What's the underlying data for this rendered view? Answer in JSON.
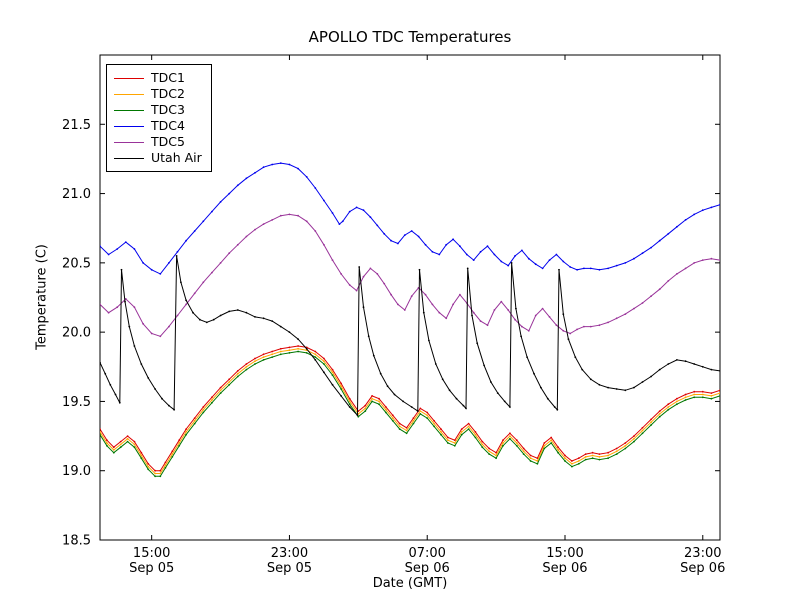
{
  "figure": {
    "background": "#ffffff",
    "frame_color": "#000000"
  },
  "chart_data": {
    "type": "line",
    "title": "APOLLO TDC Temperatures",
    "xlabel": "Date (GMT)",
    "ylabel": "Temperature (C)",
    "x_unit": "hours since Sep 05 12:00 GMT",
    "xlim": [
      0,
      36
    ],
    "ylim": [
      18.5,
      22.0
    ],
    "grid": false,
    "legend_position": "upper left",
    "x_ticks": [
      {
        "x": 3,
        "line1": "15:00",
        "line2": "Sep 05"
      },
      {
        "x": 11,
        "line1": "23:00",
        "line2": "Sep 05"
      },
      {
        "x": 19,
        "line1": "07:00",
        "line2": "Sep 06"
      },
      {
        "x": 27,
        "line1": "15:00",
        "line2": "Sep 06"
      },
      {
        "x": 35,
        "line1": "23:00",
        "line2": "Sep 06"
      }
    ],
    "y_ticks": [
      {
        "y": 18.5,
        "label": "18.5"
      },
      {
        "y": 19.0,
        "label": "19.0"
      },
      {
        "y": 19.5,
        "label": "19.5"
      },
      {
        "y": 20.0,
        "label": "20.0"
      },
      {
        "y": 20.5,
        "label": "20.5"
      },
      {
        "y": 21.0,
        "label": "21.0"
      },
      {
        "y": 21.5,
        "label": "21.5"
      }
    ],
    "series": [
      {
        "name": "TDC1",
        "color": "#dd0000",
        "x": [
          0,
          0.4,
          0.8,
          1.2,
          1.6,
          2,
          2.4,
          2.8,
          3.2,
          3.5,
          3.8,
          4.2,
          4.6,
          5,
          5.5,
          6,
          6.5,
          7,
          7.5,
          8,
          8.5,
          9,
          9.5,
          10,
          10.5,
          11,
          11.5,
          12,
          12.5,
          13,
          13.5,
          14,
          14.5,
          15,
          15.4,
          15.8,
          16.2,
          16.6,
          17,
          17.4,
          17.8,
          18.2,
          18.6,
          19,
          19.4,
          19.8,
          20.2,
          20.6,
          21,
          21.4,
          21.8,
          22.2,
          22.6,
          23,
          23.4,
          23.8,
          24.2,
          24.6,
          25,
          25.4,
          25.8,
          26.2,
          26.6,
          27,
          27.4,
          27.8,
          28.2,
          28.6,
          29,
          29.5,
          30,
          30.5,
          31,
          31.5,
          32,
          32.5,
          33,
          33.5,
          34,
          34.5,
          35,
          35.5,
          36
        ],
        "y": [
          19.3,
          19.22,
          19.17,
          19.21,
          19.25,
          19.21,
          19.13,
          19.05,
          19.0,
          19.0,
          19.06,
          19.14,
          19.22,
          19.3,
          19.38,
          19.46,
          19.53,
          19.6,
          19.66,
          19.72,
          19.77,
          19.81,
          19.84,
          19.86,
          19.88,
          19.89,
          19.9,
          19.89,
          19.86,
          19.81,
          19.73,
          19.63,
          19.52,
          19.43,
          19.47,
          19.54,
          19.52,
          19.46,
          19.4,
          19.34,
          19.31,
          19.38,
          19.45,
          19.42,
          19.36,
          19.3,
          19.24,
          19.22,
          19.3,
          19.34,
          19.28,
          19.21,
          19.16,
          19.13,
          19.22,
          19.27,
          19.22,
          19.16,
          19.11,
          19.09,
          19.2,
          19.24,
          19.17,
          19.11,
          19.07,
          19.09,
          19.12,
          19.13,
          19.12,
          19.13,
          19.16,
          19.2,
          19.25,
          19.31,
          19.37,
          19.43,
          19.48,
          19.52,
          19.55,
          19.57,
          19.57,
          19.56,
          19.58
        ]
      },
      {
        "name": "TDC2",
        "color": "#ffa500",
        "x": [
          0,
          0.4,
          0.8,
          1.2,
          1.6,
          2,
          2.4,
          2.8,
          3.2,
          3.5,
          3.8,
          4.2,
          4.6,
          5,
          5.5,
          6,
          6.5,
          7,
          7.5,
          8,
          8.5,
          9,
          9.5,
          10,
          10.5,
          11,
          11.5,
          12,
          12.5,
          13,
          13.5,
          14,
          14.5,
          15,
          15.4,
          15.8,
          16.2,
          16.6,
          17,
          17.4,
          17.8,
          18.2,
          18.6,
          19,
          19.4,
          19.8,
          20.2,
          20.6,
          21,
          21.4,
          21.8,
          22.2,
          22.6,
          23,
          23.4,
          23.8,
          24.2,
          24.6,
          25,
          25.4,
          25.8,
          26.2,
          26.6,
          27,
          27.4,
          27.8,
          28.2,
          28.6,
          29,
          29.5,
          30,
          30.5,
          31,
          31.5,
          32,
          32.5,
          33,
          33.5,
          34,
          34.5,
          35,
          35.5,
          36
        ],
        "y": [
          19.28,
          19.2,
          19.15,
          19.19,
          19.23,
          19.19,
          19.11,
          19.03,
          18.98,
          18.98,
          19.04,
          19.12,
          19.2,
          19.28,
          19.36,
          19.44,
          19.51,
          19.58,
          19.64,
          19.7,
          19.75,
          19.79,
          19.82,
          19.84,
          19.86,
          19.87,
          19.88,
          19.87,
          19.84,
          19.79,
          19.71,
          19.61,
          19.5,
          19.41,
          19.45,
          19.52,
          19.5,
          19.44,
          19.38,
          19.32,
          19.29,
          19.36,
          19.43,
          19.4,
          19.34,
          19.28,
          19.22,
          19.2,
          19.28,
          19.32,
          19.26,
          19.19,
          19.14,
          19.11,
          19.2,
          19.25,
          19.2,
          19.14,
          19.09,
          19.07,
          19.18,
          19.22,
          19.15,
          19.09,
          19.05,
          19.07,
          19.1,
          19.11,
          19.1,
          19.11,
          19.14,
          19.18,
          19.23,
          19.29,
          19.35,
          19.41,
          19.46,
          19.5,
          19.53,
          19.55,
          19.55,
          19.54,
          19.56
        ]
      },
      {
        "name": "TDC3",
        "color": "#007700",
        "x": [
          0,
          0.4,
          0.8,
          1.2,
          1.6,
          2,
          2.4,
          2.8,
          3.2,
          3.5,
          3.8,
          4.2,
          4.6,
          5,
          5.5,
          6,
          6.5,
          7,
          7.5,
          8,
          8.5,
          9,
          9.5,
          10,
          10.5,
          11,
          11.5,
          12,
          12.5,
          13,
          13.5,
          14,
          14.5,
          15,
          15.4,
          15.8,
          16.2,
          16.6,
          17,
          17.4,
          17.8,
          18.2,
          18.6,
          19,
          19.4,
          19.8,
          20.2,
          20.6,
          21,
          21.4,
          21.8,
          22.2,
          22.6,
          23,
          23.4,
          23.8,
          24.2,
          24.6,
          25,
          25.4,
          25.8,
          26.2,
          26.6,
          27,
          27.4,
          27.8,
          28.2,
          28.6,
          29,
          29.5,
          30,
          30.5,
          31,
          31.5,
          32,
          32.5,
          33,
          33.5,
          34,
          34.5,
          35,
          35.5,
          36
        ],
        "y": [
          19.26,
          19.18,
          19.13,
          19.17,
          19.21,
          19.17,
          19.09,
          19.01,
          18.96,
          18.96,
          19.02,
          19.1,
          19.18,
          19.26,
          19.34,
          19.42,
          19.49,
          19.56,
          19.62,
          19.68,
          19.73,
          19.77,
          19.8,
          19.82,
          19.84,
          19.85,
          19.86,
          19.85,
          19.82,
          19.77,
          19.69,
          19.59,
          19.48,
          19.39,
          19.43,
          19.5,
          19.48,
          19.42,
          19.36,
          19.3,
          19.27,
          19.34,
          19.41,
          19.38,
          19.32,
          19.26,
          19.2,
          19.18,
          19.26,
          19.3,
          19.24,
          19.17,
          19.12,
          19.09,
          19.18,
          19.23,
          19.18,
          19.12,
          19.07,
          19.05,
          19.16,
          19.2,
          19.13,
          19.07,
          19.03,
          19.05,
          19.08,
          19.09,
          19.08,
          19.09,
          19.12,
          19.16,
          19.21,
          19.27,
          19.33,
          19.39,
          19.44,
          19.48,
          19.51,
          19.53,
          19.53,
          19.52,
          19.54
        ]
      },
      {
        "name": "TDC4",
        "color": "#0000ee",
        "x": [
          0,
          0.5,
          1,
          1.5,
          2,
          2.5,
          3,
          3.5,
          4,
          4.5,
          5,
          5.5,
          6,
          6.5,
          7,
          7.5,
          8,
          8.5,
          9,
          9.5,
          10,
          10.5,
          11,
          11.5,
          12,
          12.5,
          13,
          13.5,
          13.9,
          14.1,
          14.5,
          14.9,
          15.3,
          15.7,
          16.1,
          16.5,
          16.9,
          17.3,
          17.7,
          18.1,
          18.5,
          18.9,
          19.3,
          19.7,
          20.1,
          20.5,
          20.9,
          21.3,
          21.7,
          22.1,
          22.5,
          22.9,
          23.3,
          23.7,
          24.1,
          24.5,
          24.9,
          25.3,
          25.7,
          26.1,
          26.5,
          26.9,
          27.3,
          27.7,
          28.1,
          28.5,
          29,
          29.5,
          30,
          30.5,
          31,
          31.5,
          32,
          32.5,
          33,
          33.5,
          34,
          34.5,
          35,
          35.5,
          36
        ],
        "y": [
          20.62,
          20.56,
          20.6,
          20.65,
          20.6,
          20.5,
          20.45,
          20.42,
          20.5,
          20.58,
          20.66,
          20.73,
          20.8,
          20.87,
          20.94,
          21.0,
          21.06,
          21.11,
          21.15,
          21.19,
          21.21,
          21.22,
          21.21,
          21.18,
          21.12,
          21.04,
          20.95,
          20.86,
          20.78,
          20.8,
          20.87,
          20.9,
          20.88,
          20.83,
          20.77,
          20.71,
          20.66,
          20.64,
          20.7,
          20.73,
          20.69,
          20.63,
          20.58,
          20.56,
          20.63,
          20.67,
          20.62,
          20.56,
          20.52,
          20.58,
          20.62,
          20.56,
          20.51,
          20.48,
          20.55,
          20.59,
          20.53,
          20.49,
          20.46,
          20.52,
          20.56,
          20.51,
          20.47,
          20.45,
          20.46,
          20.46,
          20.45,
          20.46,
          20.48,
          20.5,
          20.53,
          20.57,
          20.61,
          20.66,
          20.71,
          20.76,
          20.81,
          20.85,
          20.88,
          20.9,
          20.92
        ]
      },
      {
        "name": "TDC5",
        "color": "#993399",
        "x": [
          0,
          0.5,
          1,
          1.5,
          2,
          2.5,
          3,
          3.5,
          4,
          4.5,
          5,
          5.5,
          6,
          6.5,
          7,
          7.5,
          8,
          8.5,
          9,
          9.5,
          10,
          10.5,
          11,
          11.5,
          12,
          12.5,
          13,
          13.5,
          14,
          14.5,
          14.9,
          15.3,
          15.7,
          16.1,
          16.5,
          16.9,
          17.3,
          17.7,
          18.1,
          18.5,
          18.9,
          19.3,
          19.7,
          20.1,
          20.5,
          20.9,
          21.3,
          21.7,
          22.1,
          22.5,
          22.9,
          23.3,
          23.7,
          24.1,
          24.5,
          24.9,
          25.3,
          25.7,
          26.1,
          26.5,
          26.9,
          27.3,
          27.7,
          28.1,
          28.5,
          29,
          29.5,
          30,
          30.5,
          31,
          31.5,
          32,
          32.5,
          33,
          33.5,
          34,
          34.5,
          35,
          35.5,
          36
        ],
        "y": [
          20.2,
          20.14,
          20.18,
          20.24,
          20.18,
          20.06,
          19.99,
          19.97,
          20.04,
          20.12,
          20.2,
          20.28,
          20.36,
          20.43,
          20.5,
          20.57,
          20.63,
          20.69,
          20.74,
          20.78,
          20.81,
          20.84,
          20.85,
          20.84,
          20.8,
          20.73,
          20.63,
          20.52,
          20.42,
          20.34,
          20.3,
          20.4,
          20.46,
          20.42,
          20.35,
          20.27,
          20.2,
          20.16,
          20.26,
          20.32,
          20.27,
          20.2,
          20.14,
          20.1,
          20.2,
          20.27,
          20.21,
          20.14,
          20.08,
          20.05,
          20.16,
          20.22,
          20.16,
          20.09,
          20.04,
          20.01,
          20.12,
          20.17,
          20.11,
          20.05,
          20.01,
          19.99,
          20.02,
          20.04,
          20.04,
          20.05,
          20.07,
          20.1,
          20.13,
          20.17,
          20.21,
          20.26,
          20.31,
          20.37,
          20.42,
          20.46,
          20.5,
          20.52,
          20.53,
          20.52
        ]
      },
      {
        "name": "Utah Air",
        "color": "#000000",
        "x": [
          0,
          0.3,
          0.6,
          0.9,
          1.15,
          1.25,
          1.45,
          1.7,
          2,
          2.4,
          2.8,
          3.2,
          3.6,
          4,
          4.3,
          4.45,
          4.7,
          5,
          5.4,
          5.8,
          6.2,
          6.6,
          7,
          7.5,
          8,
          8.5,
          9,
          9.5,
          10,
          10.5,
          11,
          11.5,
          12,
          12.5,
          13,
          13.5,
          14,
          14.5,
          14.95,
          15.05,
          15.3,
          15.6,
          15.9,
          16.3,
          16.7,
          17.1,
          17.6,
          18.1,
          18.45,
          18.55,
          18.8,
          19.1,
          19.5,
          19.9,
          20.3,
          20.7,
          21.1,
          21.25,
          21.35,
          21.6,
          21.9,
          22.3,
          22.7,
          23.1,
          23.5,
          23.8,
          23.9,
          24.15,
          24.45,
          24.8,
          25.2,
          25.6,
          26,
          26.4,
          26.55,
          26.65,
          26.9,
          27.2,
          27.6,
          28,
          28.5,
          29,
          29.5,
          30,
          30.5,
          31,
          31.5,
          32,
          32.5,
          33,
          33.5,
          34,
          34.5,
          35,
          35.5,
          36
        ],
        "y": [
          19.78,
          19.7,
          19.62,
          19.55,
          19.49,
          20.45,
          20.22,
          20.04,
          19.9,
          19.77,
          19.67,
          19.59,
          19.52,
          19.47,
          19.44,
          20.55,
          20.36,
          20.23,
          20.14,
          20.09,
          20.07,
          20.09,
          20.12,
          20.15,
          20.16,
          20.14,
          20.11,
          20.1,
          20.08,
          20.04,
          20.0,
          19.95,
          19.88,
          19.8,
          19.71,
          19.62,
          19.54,
          19.46,
          19.4,
          20.47,
          20.18,
          19.97,
          19.83,
          19.7,
          19.61,
          19.55,
          19.5,
          19.46,
          19.43,
          20.45,
          20.14,
          19.94,
          19.77,
          19.66,
          19.58,
          19.52,
          19.47,
          19.45,
          20.46,
          20.12,
          19.92,
          19.76,
          19.64,
          19.56,
          19.5,
          19.46,
          20.5,
          20.17,
          19.97,
          19.82,
          19.7,
          19.6,
          19.52,
          19.46,
          19.44,
          20.45,
          20.13,
          19.95,
          19.82,
          19.73,
          19.66,
          19.62,
          19.6,
          19.59,
          19.58,
          19.6,
          19.64,
          19.68,
          19.73,
          19.77,
          19.8,
          19.79,
          19.77,
          19.75,
          19.73,
          19.72
        ]
      }
    ]
  }
}
